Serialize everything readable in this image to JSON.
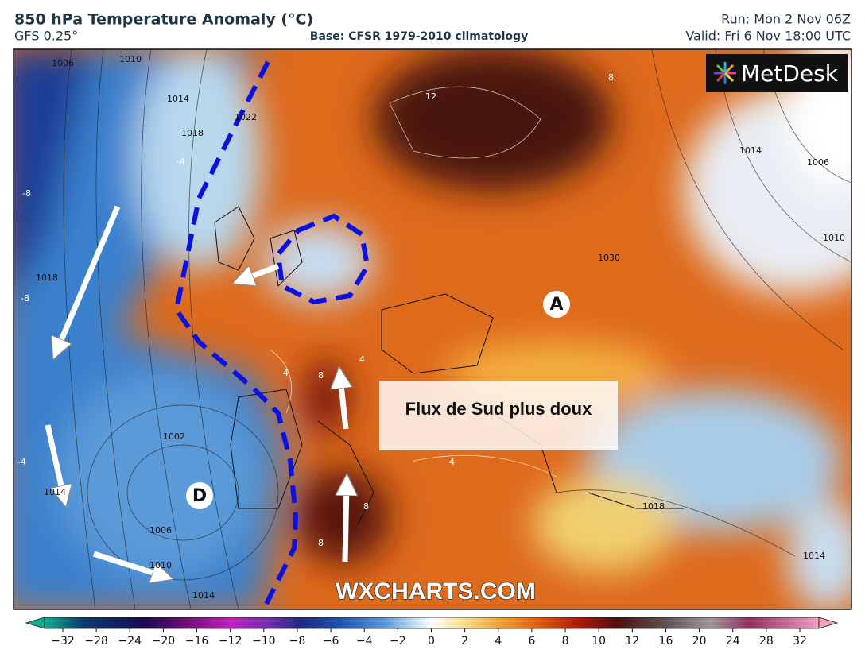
{
  "header": {
    "title": "850 hPa Temperature Anomaly (°C)",
    "model": "GFS 0.25°",
    "base": "Base: CFSR 1979-2010 climatology",
    "run": "Run: Mon 2 Nov 06Z",
    "valid": "Valid: Fri 6 Nov 18:00 UTC"
  },
  "logo": "MetDesk",
  "annotations": {
    "high": "A",
    "low": "D",
    "caption": "Flux de Sud plus doux",
    "watermark": "WXCHARTS.COM"
  },
  "isobar_labels": [
    "1006",
    "1010",
    "1014",
    "1018",
    "1022",
    "1018",
    "1014",
    "1002",
    "1006",
    "1010",
    "1014",
    "1030",
    "1018",
    "1014",
    "1006",
    "1010",
    "1014"
  ],
  "anomaly_labels": [
    "12",
    "8",
    "8",
    "8",
    "8",
    "-8",
    "-8",
    "-4",
    "-4",
    "4",
    "4",
    "4"
  ],
  "colorbar": {
    "ticks": [
      {
        "value": -32,
        "label": "−32"
      },
      {
        "value": -28,
        "label": "−28"
      },
      {
        "value": -24,
        "label": "−24"
      },
      {
        "value": -20,
        "label": "−20"
      },
      {
        "value": -16,
        "label": "−16"
      },
      {
        "value": -12,
        "label": "−12"
      },
      {
        "value": -10,
        "label": "−10"
      },
      {
        "value": -8,
        "label": "−8"
      },
      {
        "value": -6,
        "label": "−6"
      },
      {
        "value": -4,
        "label": "−4"
      },
      {
        "value": -2,
        "label": "−2"
      },
      0,
      2,
      4,
      6,
      8,
      10,
      12,
      16,
      20,
      24,
      28,
      32
    ]
  }
}
